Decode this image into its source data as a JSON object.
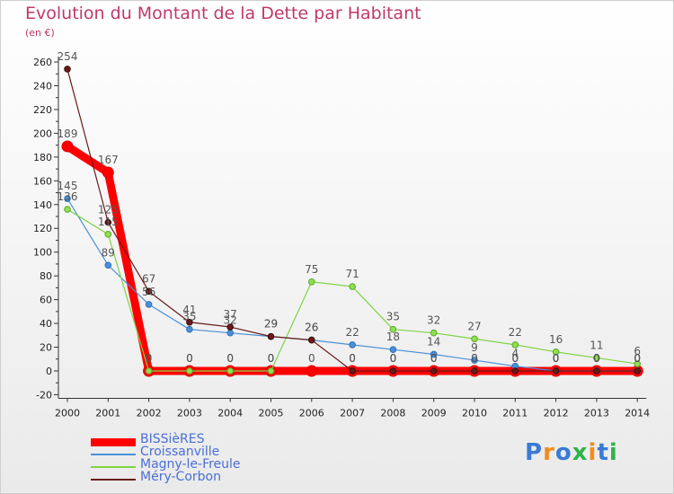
{
  "chart_data": {
    "type": "line",
    "title": "Evolution du Montant de la Dette par Habitant",
    "subtitle": "(en €)",
    "x": [
      "2000",
      "2001",
      "2002",
      "2003",
      "2004",
      "2005",
      "2006",
      "2007",
      "2008",
      "2009",
      "2010",
      "2011",
      "2012",
      "2013",
      "2014"
    ],
    "ylim": [
      -20,
      260
    ],
    "yticks": [
      -20,
      0,
      20,
      40,
      60,
      80,
      100,
      120,
      140,
      160,
      180,
      200,
      220,
      240,
      260
    ],
    "grid": false,
    "legend_position": "bottom-left",
    "series": [
      {
        "name": "BISSièRES",
        "color": "#ff0000",
        "values": [
          189,
          167,
          0,
          0,
          0,
          0,
          0,
          0,
          0,
          0,
          0,
          0,
          0,
          0,
          0
        ],
        "labels": [
          "189",
          "167",
          "0",
          "0",
          "0",
          "0",
          "0",
          "0",
          "0",
          "0",
          "0",
          "0",
          "0",
          "0",
          "0"
        ]
      },
      {
        "name": "Croissanville",
        "color": "#4a90d9",
        "values": [
          145,
          89,
          56,
          35,
          32,
          29,
          26,
          22,
          18,
          14,
          9,
          4,
          0,
          0,
          0
        ],
        "labels": [
          "145",
          "89",
          "56",
          "35",
          "32",
          "29",
          "26",
          "22",
          "18",
          "14",
          "9",
          "4",
          "0",
          "0",
          "0"
        ]
      },
      {
        "name": "Magny-le-Freule",
        "color": "#7fd444",
        "values": [
          136,
          115,
          0,
          0,
          0,
          0,
          75,
          71,
          35,
          32,
          27,
          22,
          16,
          11,
          6
        ],
        "labels": [
          "136",
          "115",
          "0",
          "0",
          "0",
          "0",
          "75",
          "71",
          "35",
          "32",
          "27",
          "22",
          "16",
          "11",
          "6"
        ]
      },
      {
        "name": "Méry-Corbon",
        "color": "#6b1a1a",
        "values": [
          254,
          125,
          67,
          41,
          37,
          29,
          26,
          0,
          0,
          0,
          0,
          0,
          0,
          0,
          0
        ],
        "labels": [
          "254",
          "125",
          "67",
          "41",
          "37",
          "29",
          "26",
          "0",
          "0",
          "0",
          "0",
          "0",
          "0",
          "0",
          "0"
        ]
      }
    ]
  },
  "logo": {
    "text": "Proxiti",
    "colors": [
      "#3a7bd5",
      "#f28c1e",
      "#3a7bd5",
      "#2fb34a",
      "#f28c1e",
      "#3a7bd5",
      "#2fb34a"
    ]
  }
}
